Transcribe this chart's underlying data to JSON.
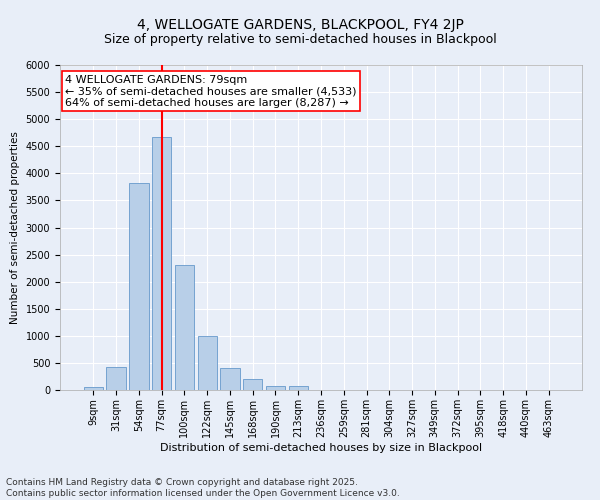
{
  "title": "4, WELLOGATE GARDENS, BLACKPOOL, FY4 2JP",
  "subtitle": "Size of property relative to semi-detached houses in Blackpool",
  "xlabel": "Distribution of semi-detached houses by size in Blackpool",
  "ylabel": "Number of semi-detached properties",
  "categories": [
    "9sqm",
    "31sqm",
    "54sqm",
    "77sqm",
    "100sqm",
    "122sqm",
    "145sqm",
    "168sqm",
    "190sqm",
    "213sqm",
    "236sqm",
    "259sqm",
    "281sqm",
    "304sqm",
    "327sqm",
    "349sqm",
    "372sqm",
    "395sqm",
    "418sqm",
    "440sqm",
    "463sqm"
  ],
  "values": [
    50,
    430,
    3820,
    4680,
    2300,
    1000,
    400,
    210,
    80,
    75,
    0,
    0,
    0,
    0,
    0,
    0,
    0,
    0,
    0,
    0,
    0
  ],
  "bar_color": "#b8cfe8",
  "bar_edge_color": "#6699cc",
  "vline_color": "red",
  "vline_index": 3,
  "annotation_text": "4 WELLOGATE GARDENS: 79sqm\n← 35% of semi-detached houses are smaller (4,533)\n64% of semi-detached houses are larger (8,287) →",
  "ylim": [
    0,
    6000
  ],
  "yticks": [
    0,
    500,
    1000,
    1500,
    2000,
    2500,
    3000,
    3500,
    4000,
    4500,
    5000,
    5500,
    6000
  ],
  "background_color": "#e8eef8",
  "grid_color": "#ffffff",
  "footer": "Contains HM Land Registry data © Crown copyright and database right 2025.\nContains public sector information licensed under the Open Government Licence v3.0.",
  "title_fontsize": 10,
  "subtitle_fontsize": 9,
  "xlabel_fontsize": 8,
  "ylabel_fontsize": 7.5,
  "tick_fontsize": 7,
  "annotation_fontsize": 8,
  "footer_fontsize": 6.5
}
